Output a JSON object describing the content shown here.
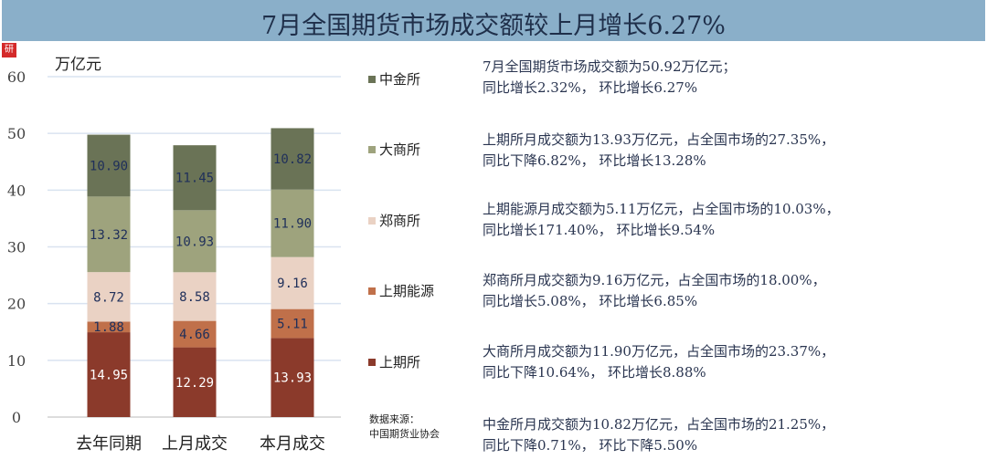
{
  "title": "7月全国期货市场成交额较上月增长6.27%",
  "logo": "研",
  "chart_data": {
    "type": "bar",
    "stacked": true,
    "ylabel": "万亿元",
    "ylim": [
      0,
      60
    ],
    "yticks": [
      0,
      10,
      20,
      30,
      40,
      50,
      60
    ],
    "grid": true,
    "legend_placement": "right",
    "categories": [
      "去年同期",
      "上月成交",
      "本月成交"
    ],
    "series": [
      {
        "name": "上期所",
        "values": [
          14.95,
          12.29,
          13.93
        ],
        "color": "#8b3a2b",
        "label_color": "#ffffff"
      },
      {
        "name": "上期能源",
        "values": [
          1.88,
          4.66,
          5.11
        ],
        "color": "#c0704a",
        "label_color": "#1f2f5a"
      },
      {
        "name": "郑商所",
        "values": [
          8.72,
          8.58,
          9.16
        ],
        "color": "#ead2c4",
        "label_color": "#1f2f5a"
      },
      {
        "name": "大商所",
        "values": [
          13.32,
          10.93,
          11.9
        ],
        "color": "#9ea37d",
        "label_color": "#1f2f5a"
      },
      {
        "name": "中金所",
        "values": [
          10.9,
          11.45,
          10.82
        ],
        "color": "#6a7356",
        "label_color": "#1f2f5a"
      }
    ]
  },
  "notes": [
    {
      "line1": "7月全国期货市场成交额为50.92万亿元；",
      "line2": "同比增长2.32%， 环比增长6.27%"
    },
    {
      "line1": "上期所月成交额为13.93万亿元，占全国市场的27.35%，",
      "line2": "同比下降6.82%， 环比增长13.28%"
    },
    {
      "line1": "上期能源月成交额为5.11万亿元，占全国市场的10.03%，",
      "line2": "同比增长171.40%， 环比增长9.54%"
    },
    {
      "line1": "郑商所月成交额为9.16万亿元，占全国市场的18.00%，",
      "line2": "同比增长5.08%， 环比增长6.85%"
    },
    {
      "line1": "大商所月成交额为11.90万亿元，占全国市场的23.37%，",
      "line2": "同比下降10.64%， 环比增长8.88%"
    },
    {
      "line1": "中金所月成交额为10.82万亿元，占全国市场的21.25%，",
      "line2": "同比下降0.71%， 环比下降5.50%"
    }
  ],
  "source": {
    "label": "数据来源：",
    "value": "中国期货业协会"
  }
}
